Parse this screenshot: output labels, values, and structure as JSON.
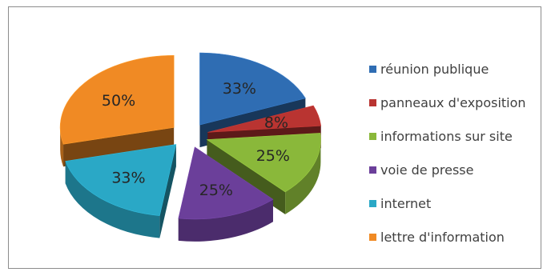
{
  "chart_data": {
    "type": "pie",
    "title": "",
    "categories": [
      "réunion publique",
      "panneaux d'exposition",
      "informations sur site",
      "voie de presse",
      "internet",
      "lettre d'information"
    ],
    "values": [
      33,
      8,
      25,
      25,
      33,
      50
    ],
    "labels": [
      "33%",
      "8%",
      "25%",
      "25%",
      "33%",
      "50%"
    ],
    "colors": [
      "#2F6DB3",
      "#B93431",
      "#8AB83A",
      "#6B3F9A",
      "#2AA8C6",
      "#F08A24"
    ],
    "exploded": true,
    "three_d": true,
    "legend_position": "right"
  }
}
